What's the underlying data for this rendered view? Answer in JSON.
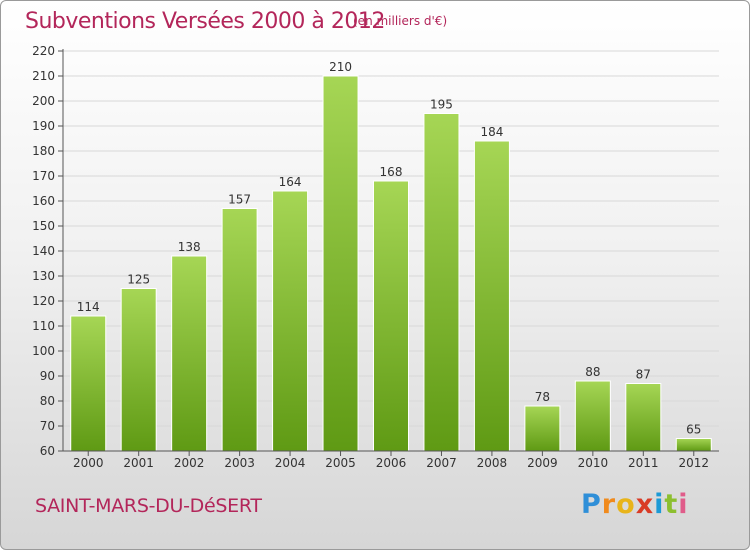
{
  "header": {
    "title": "Subventions Versées 2000 à 2012",
    "unit_note": "(en milliers d'€)"
  },
  "footer": {
    "town": "SAINT-MARS-DU-DéSERT",
    "logo_text": "Proxiti"
  },
  "colors": {
    "title": "#b3265a",
    "bar_top": "#a6d655",
    "bar_bottom": "#5f9a14",
    "grid": "#d8d8d8",
    "axis": "#555555"
  },
  "chart_data": {
    "type": "bar",
    "categories": [
      "2000",
      "2001",
      "2002",
      "2003",
      "2004",
      "2005",
      "2006",
      "2007",
      "2008",
      "2009",
      "2010",
      "2011",
      "2012"
    ],
    "values": [
      114,
      125,
      138,
      157,
      164,
      210,
      168,
      195,
      184,
      78,
      88,
      87,
      65
    ],
    "data_labels": [
      "114",
      "125",
      "138",
      "157",
      "164",
      "210",
      "168",
      "195",
      "184",
      "78",
      "88",
      "87",
      "65"
    ],
    "ylim": [
      60,
      220
    ],
    "yticks": [
      60,
      70,
      80,
      90,
      100,
      110,
      120,
      130,
      140,
      150,
      160,
      170,
      180,
      190,
      200,
      210,
      220
    ],
    "grid": true,
    "legend": "none"
  }
}
